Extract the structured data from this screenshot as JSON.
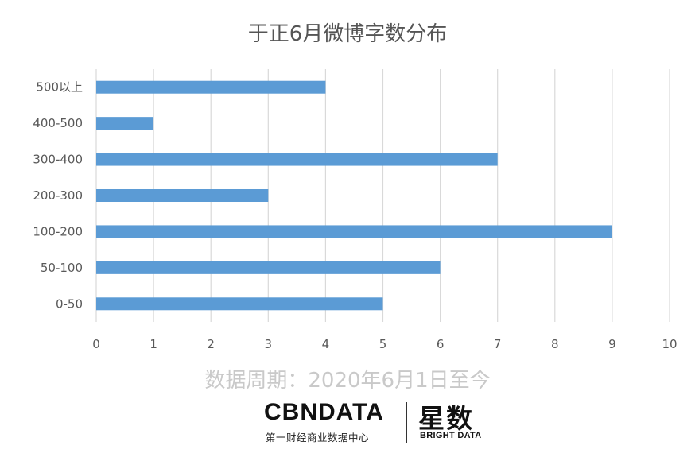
{
  "chart_data": {
    "type": "bar",
    "orientation": "horizontal",
    "title": "于正6月微博字数分布",
    "categories": [
      "500以上",
      "400-500",
      "300-400",
      "200-300",
      "100-200",
      "50-100",
      "0-50"
    ],
    "values": [
      4,
      1,
      7,
      3,
      9,
      6,
      5
    ],
    "xlim": [
      0,
      10
    ],
    "xticks": [
      "0",
      "1",
      "2",
      "3",
      "4",
      "5",
      "6",
      "7",
      "8",
      "9",
      "10"
    ],
    "grid": "vertical",
    "bar_color": "#5b9bd5"
  },
  "footer": {
    "period": "数据周期：2020年6月1日至今"
  },
  "logo": {
    "cbn_text": "CBNDATA",
    "cbn_subtitle": "第一财经商业数据中心",
    "star_text": "星数",
    "bright_text": "BRIGHT DATA"
  }
}
